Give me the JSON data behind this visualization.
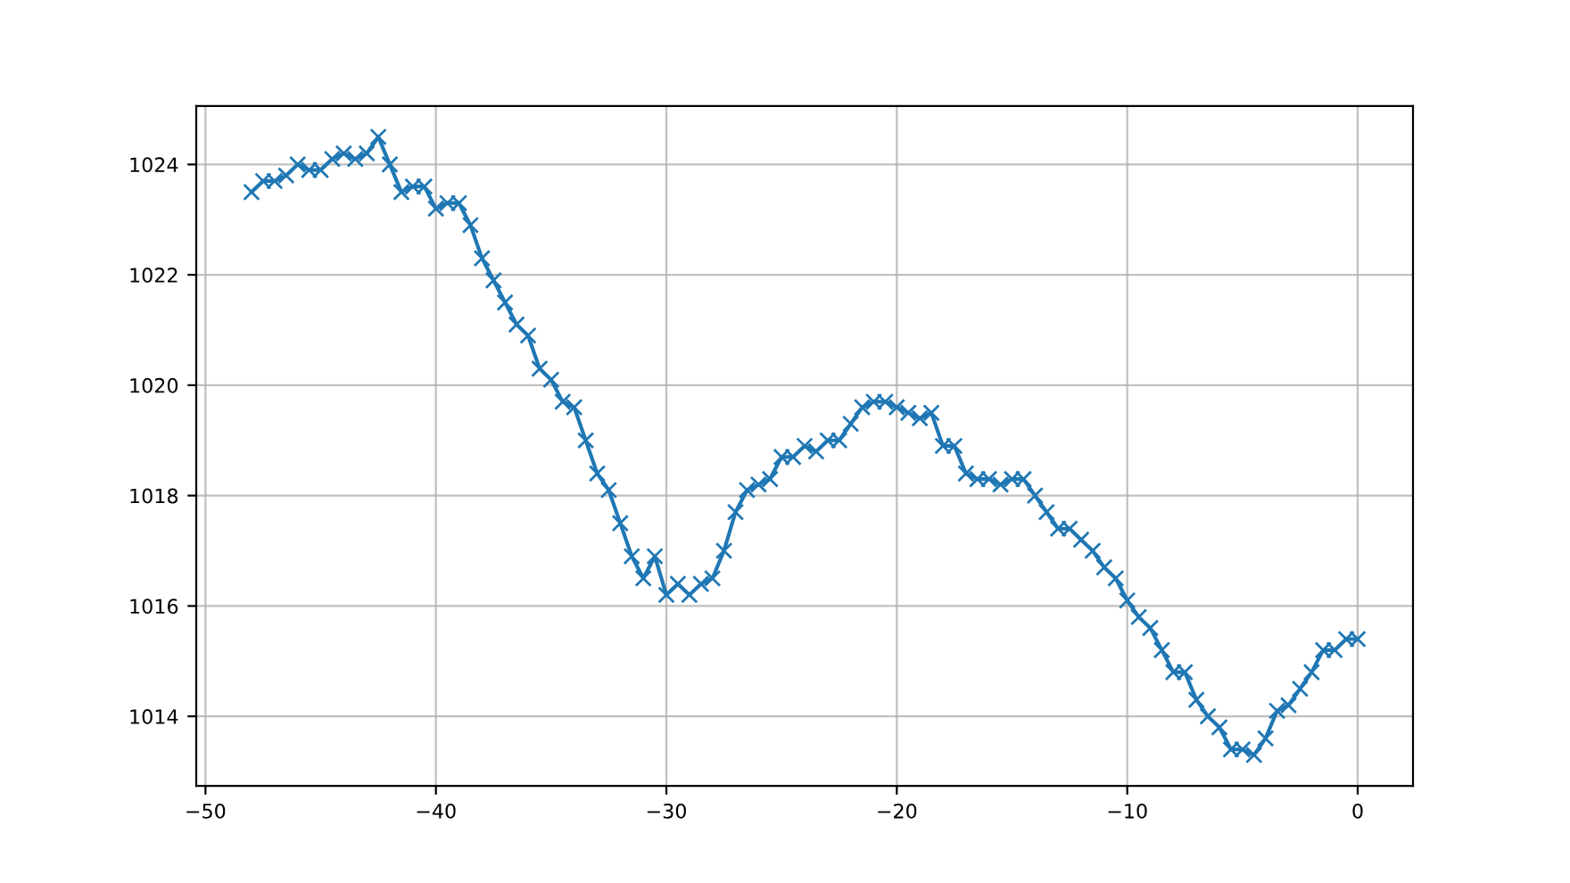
{
  "chart_data": {
    "type": "line",
    "marker": "cross",
    "grid": true,
    "x": [
      -48,
      -47.5,
      -47,
      -46.5,
      -46,
      -45.5,
      -45,
      -44.5,
      -44,
      -43.5,
      -43,
      -42.5,
      -42,
      -41.5,
      -41,
      -40.5,
      -40,
      -39.5,
      -39,
      -38.5,
      -38,
      -37.5,
      -37,
      -36.5,
      -36,
      -35.5,
      -35,
      -34.5,
      -34,
      -33.5,
      -33,
      -32.5,
      -32,
      -31.5,
      -31,
      -30.5,
      -30,
      -29.5,
      -29,
      -28.5,
      -28,
      -27.5,
      -27,
      -26.5,
      -26,
      -25.5,
      -25,
      -24.5,
      -24,
      -23.5,
      -23,
      -22.5,
      -22,
      -21.5,
      -21,
      -20.5,
      -20,
      -19.5,
      -19,
      -18.5,
      -18,
      -17.5,
      -17,
      -16.5,
      -16,
      -15.5,
      -15,
      -14.5,
      -14,
      -13.5,
      -13,
      -12.5,
      -12,
      -11.5,
      -11,
      -10.5,
      -10,
      -9.5,
      -9,
      -8.5,
      -8,
      -7.5,
      -7,
      -6.5,
      -6,
      -5.5,
      -5,
      -4.5,
      -4,
      -3.5,
      -3,
      -2.5,
      -2,
      -1.5,
      -1,
      -0.5,
      0
    ],
    "series": [
      {
        "color": "#1f77b4",
        "values": [
          1023.5,
          1023.7,
          1023.7,
          1023.8,
          1024.0,
          1023.9,
          1023.9,
          1024.1,
          1024.2,
          1024.1,
          1024.2,
          1024.5,
          1024.0,
          1023.5,
          1023.6,
          1023.6,
          1023.2,
          1023.3,
          1023.3,
          1022.9,
          1022.3,
          1021.9,
          1021.5,
          1021.1,
          1020.9,
          1020.3,
          1020.1,
          1019.7,
          1019.6,
          1019.0,
          1018.4,
          1018.1,
          1017.5,
          1016.9,
          1016.5,
          1016.9,
          1016.2,
          1016.4,
          1016.2,
          1016.4,
          1016.5,
          1017.0,
          1017.7,
          1018.1,
          1018.2,
          1018.3,
          1018.7,
          1018.7,
          1018.9,
          1018.8,
          1019.0,
          1019.0,
          1019.3,
          1019.6,
          1019.7,
          1019.7,
          1019.6,
          1019.5,
          1019.4,
          1019.5,
          1018.9,
          1018.9,
          1018.4,
          1018.3,
          1018.3,
          1018.2,
          1018.3,
          1018.3,
          1018.0,
          1017.7,
          1017.4,
          1017.4,
          1017.2,
          1017.0,
          1016.7,
          1016.5,
          1016.1,
          1015.8,
          1015.6,
          1015.2,
          1014.8,
          1014.8,
          1014.3,
          1014.0,
          1013.8,
          1013.4,
          1013.4,
          1013.3,
          1013.6,
          1014.1,
          1014.2,
          1014.5,
          1014.8,
          1015.2,
          1015.2,
          1015.4,
          1015.4
        ]
      }
    ],
    "xlim": [
      -50.4,
      2.4
    ],
    "ylim": [
      1012.74,
      1025.06
    ],
    "xticks": [
      {
        "value": -50,
        "label": "−50"
      },
      {
        "value": -40,
        "label": "−40"
      },
      {
        "value": -30,
        "label": "−30"
      },
      {
        "value": -20,
        "label": "−20"
      },
      {
        "value": -10,
        "label": "−10"
      },
      0
    ],
    "yticks": [
      1014,
      1016,
      1018,
      1020,
      1022,
      1024
    ]
  }
}
